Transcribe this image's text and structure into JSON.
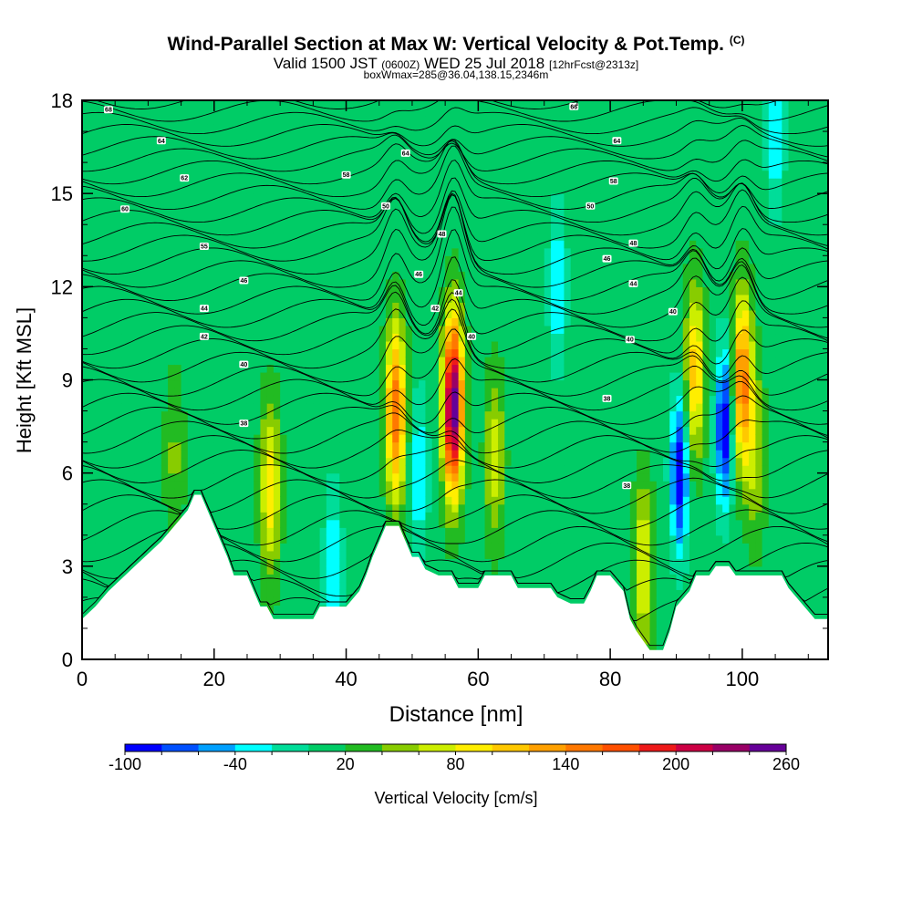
{
  "chart_data": {
    "type": "heatmap",
    "title": "Wind-Parallel Section at Max W: Vertical Velocity & Pot.Temp.",
    "title_mark": "(C)",
    "subtitle_parts": [
      "Valid 1500 JST ",
      "(0600Z)",
      " WED 25 Jul 2018 ",
      "[12hrFcst@2313z]"
    ],
    "subtitle2": "boxWmax=285@36.04,138.15,2346m",
    "xlabel": "Distance [nm]",
    "ylabel": "Height [Kft MSL]",
    "xlim": [
      0,
      113
    ],
    "ylim": [
      0,
      18
    ],
    "x_ticks": [
      0,
      20,
      40,
      60,
      80,
      100
    ],
    "y_ticks": [
      0,
      3,
      6,
      9,
      12,
      15,
      18
    ],
    "colorbar": {
      "label": "Vertical Velocity [cm/s]",
      "ticks": [
        -100,
        -40,
        20,
        80,
        140,
        200,
        260
      ],
      "levels": [
        -100,
        -80,
        -60,
        -40,
        -20,
        0,
        20,
        40,
        60,
        80,
        100,
        120,
        140,
        160,
        180,
        200,
        220,
        240,
        260
      ],
      "colors": [
        "#0000ff",
        "#0050ff",
        "#00a0ff",
        "#00ffff",
        "#00dd99",
        "#00cc66",
        "#22bb22",
        "#88cc00",
        "#ccee00",
        "#ffee00",
        "#ffc800",
        "#ffa000",
        "#ff7800",
        "#ff5000",
        "#ee1a1a",
        "#cc0044",
        "#990066",
        "#660099"
      ]
    },
    "background_w": 10,
    "updrafts": [
      {
        "x": 14.0,
        "y": 6.5,
        "max_w": 45
      },
      {
        "x": 28.5,
        "y": 5.5,
        "max_w": 95
      },
      {
        "x": 47.5,
        "y": 8.0,
        "max_w": 160
      },
      {
        "x": 56.2,
        "y": 8.2,
        "max_w": 260
      },
      {
        "x": 62.5,
        "y": 6.5,
        "max_w": 70
      },
      {
        "x": 85.0,
        "y": 3.0,
        "max_w": 85
      },
      {
        "x": 92.8,
        "y": 9.3,
        "max_w": 110
      },
      {
        "x": 100.0,
        "y": 9.0,
        "max_w": 150
      },
      {
        "x": 102.0,
        "y": 6.5,
        "max_w": 60
      }
    ],
    "downdrafts": [
      {
        "x": 51.0,
        "y": 6.0,
        "min_w": -40
      },
      {
        "x": 38.0,
        "y": 3.0,
        "min_w": -40
      },
      {
        "x": 72.0,
        "y": 12.0,
        "min_w": -40
      },
      {
        "x": 90.5,
        "y": 6.0,
        "min_w": -100
      },
      {
        "x": 97.3,
        "y": 7.5,
        "min_w": -100
      },
      {
        "x": 105.0,
        "y": 17.0,
        "min_w": -40
      }
    ],
    "terrain": [
      [
        0,
        1.3
      ],
      [
        2,
        1.7
      ],
      [
        4,
        2.2
      ],
      [
        6,
        2.6
      ],
      [
        8,
        3.0
      ],
      [
        10,
        3.4
      ],
      [
        12,
        3.8
      ],
      [
        14,
        4.3
      ],
      [
        16,
        4.8
      ],
      [
        17,
        5.3
      ],
      [
        18,
        5.3
      ],
      [
        19,
        4.8
      ],
      [
        20,
        4.3
      ],
      [
        21,
        3.8
      ],
      [
        22,
        3.3
      ],
      [
        23,
        2.7
      ],
      [
        24,
        2.7
      ],
      [
        25,
        2.7
      ],
      [
        26,
        2.2
      ],
      [
        27,
        1.7
      ],
      [
        28,
        1.7
      ],
      [
        29,
        1.3
      ],
      [
        30,
        1.3
      ],
      [
        35,
        1.3
      ],
      [
        36,
        1.7
      ],
      [
        40,
        1.7
      ],
      [
        42,
        2.2
      ],
      [
        43,
        2.7
      ],
      [
        44,
        3.3
      ],
      [
        45,
        3.8
      ],
      [
        46,
        4.3
      ],
      [
        48,
        4.3
      ],
      [
        49,
        3.8
      ],
      [
        50,
        3.3
      ],
      [
        51,
        3.3
      ],
      [
        52,
        2.9
      ],
      [
        54,
        2.7
      ],
      [
        56,
        2.7
      ],
      [
        57,
        2.3
      ],
      [
        60,
        2.3
      ],
      [
        61,
        2.7
      ],
      [
        65,
        2.7
      ],
      [
        66,
        2.3
      ],
      [
        71,
        2.3
      ],
      [
        72,
        2.0
      ],
      [
        74,
        1.8
      ],
      [
        76,
        1.8
      ],
      [
        77,
        2.2
      ],
      [
        78,
        2.7
      ],
      [
        80,
        2.7
      ],
      [
        82,
        2.2
      ],
      [
        83,
        1.3
      ],
      [
        84,
        0.9
      ],
      [
        85,
        0.6
      ],
      [
        86,
        0.3
      ],
      [
        88,
        0.3
      ],
      [
        89,
        0.9
      ],
      [
        90,
        1.7
      ],
      [
        92,
        2.2
      ],
      [
        93,
        2.7
      ],
      [
        95,
        2.7
      ],
      [
        96,
        3.0
      ],
      [
        98,
        3.0
      ],
      [
        99,
        2.7
      ],
      [
        106,
        2.7
      ],
      [
        107,
        2.3
      ],
      [
        109,
        1.8
      ],
      [
        111,
        1.3
      ],
      [
        113,
        1.3
      ]
    ],
    "theta_base_level": 28,
    "theta_top_level": 70,
    "theta_labels": [
      {
        "x": 4.0,
        "y": 17.7,
        "text": "68"
      },
      {
        "x": 12.0,
        "y": 16.7,
        "text": "64"
      },
      {
        "x": 15.5,
        "y": 15.5,
        "text": "62"
      },
      {
        "x": 6.5,
        "y": 14.5,
        "text": "60"
      },
      {
        "x": 18.5,
        "y": 13.3,
        "text": "55"
      },
      {
        "x": 24.5,
        "y": 12.2,
        "text": "46"
      },
      {
        "x": 18.5,
        "y": 11.3,
        "text": "44"
      },
      {
        "x": 18.5,
        "y": 10.4,
        "text": "42"
      },
      {
        "x": 24.5,
        "y": 9.5,
        "text": "40"
      },
      {
        "x": 24.5,
        "y": 7.6,
        "text": "38"
      },
      {
        "x": 40.0,
        "y": 15.6,
        "text": "58"
      },
      {
        "x": 49.0,
        "y": 16.3,
        "text": "64"
      },
      {
        "x": 46.0,
        "y": 14.6,
        "text": "50"
      },
      {
        "x": 54.5,
        "y": 13.7,
        "text": "48"
      },
      {
        "x": 51.0,
        "y": 12.4,
        "text": "46"
      },
      {
        "x": 57.0,
        "y": 11.8,
        "text": "44"
      },
      {
        "x": 53.5,
        "y": 11.3,
        "text": "42"
      },
      {
        "x": 59.0,
        "y": 10.4,
        "text": "40"
      },
      {
        "x": 74.5,
        "y": 17.8,
        "text": "66"
      },
      {
        "x": 81.0,
        "y": 16.7,
        "text": "64"
      },
      {
        "x": 80.5,
        "y": 15.4,
        "text": "58"
      },
      {
        "x": 77.0,
        "y": 14.6,
        "text": "50"
      },
      {
        "x": 83.5,
        "y": 13.4,
        "text": "48"
      },
      {
        "x": 79.5,
        "y": 12.9,
        "text": "46"
      },
      {
        "x": 83.5,
        "y": 12.1,
        "text": "44"
      },
      {
        "x": 89.5,
        "y": 11.2,
        "text": "40"
      },
      {
        "x": 83.0,
        "y": 10.3,
        "text": "40"
      },
      {
        "x": 79.5,
        "y": 8.4,
        "text": "38"
      },
      {
        "x": 82.5,
        "y": 5.6,
        "text": "38"
      }
    ]
  }
}
